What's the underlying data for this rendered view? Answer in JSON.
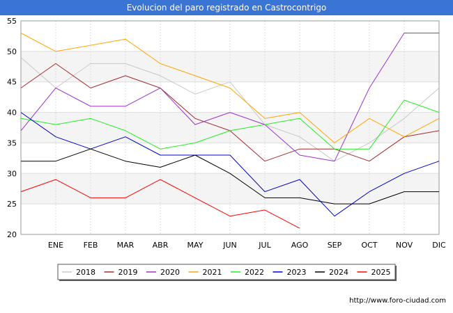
{
  "header": {
    "title": "Evolucion del paro registrado en Castrocontrigo"
  },
  "footer": {
    "url": "http://www.foro-ciudad.com"
  },
  "chart_data": {
    "type": "line",
    "title": "Evolucion del paro registrado en Castrocontrigo",
    "categories": [
      "",
      "ENE",
      "FEB",
      "MAR",
      "ABR",
      "MAY",
      "JUN",
      "JUL",
      "AGO",
      "SEP",
      "OCT",
      "NOV",
      "DIC"
    ],
    "ylim": [
      20,
      55
    ],
    "yticks": [
      20,
      25,
      30,
      35,
      40,
      45,
      50,
      55
    ],
    "grid": true,
    "legend_position": "bottom",
    "series": [
      {
        "name": "2018",
        "color": "#c8c8c8",
        "values": [
          49,
          44,
          48,
          48,
          46,
          43,
          45,
          38,
          36,
          32,
          35,
          39,
          44
        ]
      },
      {
        "name": "2019",
        "color": "#a52a2a",
        "values": [
          44,
          48,
          44,
          46,
          44,
          39,
          37,
          32,
          34,
          34,
          32,
          36,
          37
        ]
      },
      {
        "name": "2020",
        "color": "#9a32cd",
        "values": [
          37,
          44,
          41,
          41,
          44,
          38,
          40,
          38,
          33,
          32,
          44,
          53,
          53
        ]
      },
      {
        "name": "2021",
        "color": "#ffa500",
        "values": [
          53,
          50,
          51,
          52,
          48,
          46,
          44,
          39,
          40,
          35,
          39,
          36,
          39
        ]
      },
      {
        "name": "2022",
        "color": "#22ee22",
        "values": [
          39,
          38,
          39,
          37,
          34,
          35,
          37,
          38,
          39,
          34,
          34,
          42,
          40
        ]
      },
      {
        "name": "2023",
        "color": "#0000cd",
        "values": [
          40,
          36,
          34,
          36,
          33,
          33,
          33,
          27,
          29,
          23,
          27,
          30,
          32
        ]
      },
      {
        "name": "2024",
        "color": "#000000",
        "values": [
          32,
          32,
          34,
          32,
          31,
          33,
          30,
          26,
          26,
          25,
          25,
          27,
          27
        ]
      },
      {
        "name": "2025",
        "color": "#ff0000",
        "values": [
          27,
          29,
          26,
          26,
          29,
          26,
          23,
          24,
          21,
          null,
          null,
          null,
          null
        ]
      }
    ]
  }
}
